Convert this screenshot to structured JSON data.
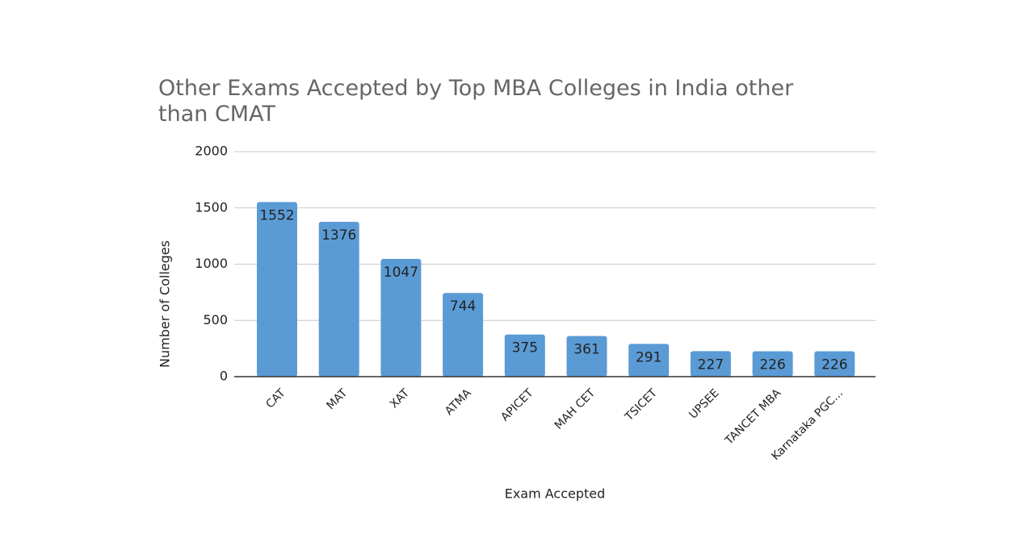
{
  "chart_data": {
    "type": "bar",
    "title": "Other Exams Accepted by Top MBA Colleges in India other than CMAT",
    "x_label": "Exam Accepted",
    "y_label": "Number of Colleges",
    "categories": [
      "CAT",
      "MAT",
      "XAT",
      "ATMA",
      "APICET",
      "MAH CET",
      "TSICET",
      "UPSEE",
      "TANCET MBA",
      "Karnataka PGC..."
    ],
    "values": [
      1552,
      1376,
      1047,
      744,
      375,
      361,
      291,
      227,
      226,
      226
    ],
    "color": "#5b9bd5",
    "ylim": [
      0,
      2000
    ],
    "yticks": [
      0,
      500,
      1000,
      1500,
      2000
    ],
    "grid": true
  }
}
